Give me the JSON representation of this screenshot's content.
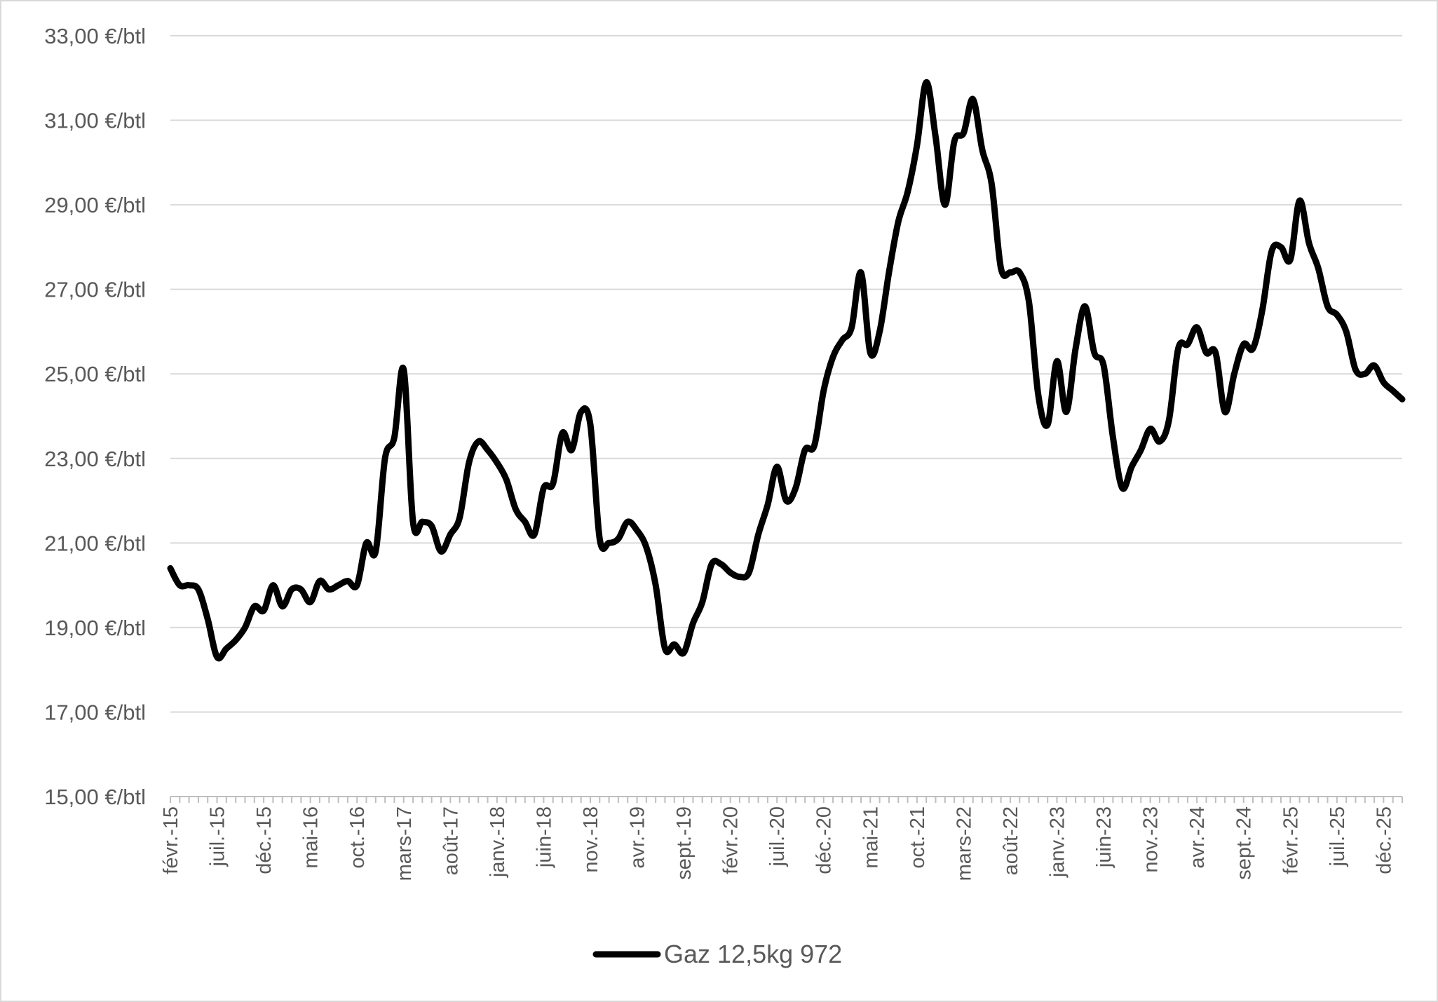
{
  "chart_data": {
    "type": "line",
    "title": "",
    "xlabel": "",
    "ylabel": "",
    "ylim": [
      15,
      33
    ],
    "y_ticks": [
      15,
      17,
      19,
      21,
      23,
      25,
      27,
      29,
      31,
      33
    ],
    "y_tick_labels": [
      "15,00 €/btl",
      "17,00 €/btl",
      "19,00 €/btl",
      "21,00 €/btl",
      "23,00 €/btl",
      "25,00 €/btl",
      "27,00 €/btl",
      "29,00 €/btl",
      "31,00 €/btl",
      "33,00 €/btl"
    ],
    "x_tick_labels": [
      "févr.-15",
      "juil.-15",
      "déc.-15",
      "mai-16",
      "oct.-16",
      "mars-17",
      "août-17",
      "janv.-18",
      "juin-18",
      "nov.-18",
      "avr.-19",
      "sept.-19",
      "févr.-20",
      "juil.-20",
      "déc.-20",
      "mai-21",
      "oct.-21",
      "mars-22",
      "août-22",
      "janv.-23",
      "juin-23",
      "nov.-23",
      "avr.-24",
      "sept.-24",
      "févr.-25",
      "juil.-25",
      "déc.-25"
    ],
    "grid": true,
    "legend_position": "bottom",
    "series": [
      {
        "name": "Gaz 12,5kg 972",
        "color": "#000000",
        "x_start": "févr.-15",
        "x_step": "1 month",
        "values": [
          20.4,
          20.0,
          20.0,
          19.9,
          19.2,
          18.3,
          18.5,
          18.7,
          19.0,
          19.5,
          19.4,
          20.0,
          19.5,
          19.9,
          19.9,
          19.6,
          20.1,
          19.9,
          20.0,
          20.1,
          20.0,
          21.0,
          20.8,
          23.0,
          23.5,
          25.1,
          21.5,
          21.5,
          21.4,
          20.8,
          21.2,
          21.6,
          22.9,
          23.4,
          23.2,
          22.9,
          22.5,
          21.8,
          21.5,
          21.2,
          22.3,
          22.4,
          23.6,
          23.2,
          24.1,
          23.8,
          21.1,
          21.0,
          21.1,
          21.5,
          21.3,
          20.9,
          20.0,
          18.5,
          18.6,
          18.4,
          19.1,
          19.6,
          20.5,
          20.5,
          20.3,
          20.2,
          20.3,
          21.2,
          21.9,
          22.8,
          22.0,
          22.3,
          23.2,
          23.3,
          24.6,
          25.4,
          25.8,
          26.1,
          27.4,
          25.5,
          26.0,
          27.4,
          28.6,
          29.3,
          30.4,
          31.9,
          30.6,
          29.0,
          30.5,
          30.7,
          31.5,
          30.3,
          29.5,
          27.5,
          27.4,
          27.4,
          26.7,
          24.5,
          23.8,
          25.3,
          24.1,
          25.6,
          26.6,
          25.5,
          25.2,
          23.5,
          22.3,
          22.8,
          23.2,
          23.7,
          23.4,
          23.9,
          25.6,
          25.7,
          26.1,
          25.5,
          25.5,
          24.1,
          25.0,
          25.7,
          25.6,
          26.5,
          27.9,
          28.0,
          27.7,
          29.1,
          28.1,
          27.5,
          26.6,
          26.4,
          26.0,
          25.1,
          25.0,
          25.2,
          24.8,
          24.6,
          24.4
        ]
      }
    ]
  }
}
